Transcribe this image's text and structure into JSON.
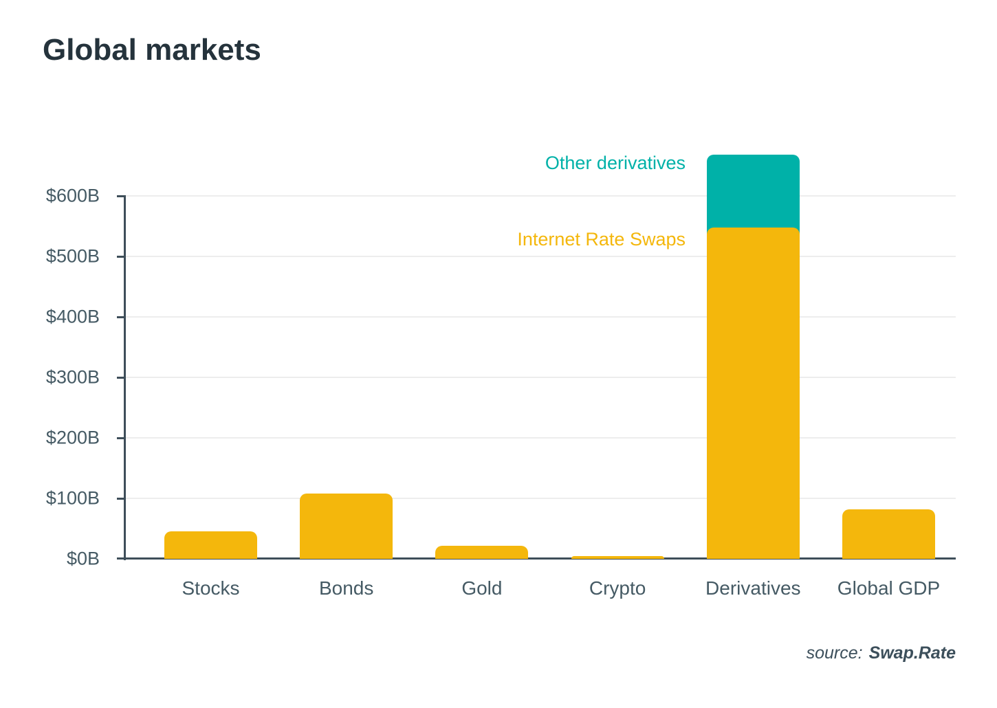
{
  "title": "Global markets",
  "source": {
    "prefix": "source:",
    "name": "Swap.Rate"
  },
  "colors": {
    "title_text": "#25333C",
    "axis_line": "#3E4E59",
    "axis_label": "#455A64",
    "gridline": "#EDEDED",
    "swap_yellow": "#F4B70C",
    "derivatives_teal": "#00B1A8",
    "background": "#FFFFFF"
  },
  "chart_data": {
    "type": "bar",
    "stacked": true,
    "title": "Global markets",
    "xlabel": "",
    "ylabel": "",
    "categories": [
      "Stocks",
      "Bonds",
      "Gold",
      "Crypto",
      "Derivatives",
      "Global GDP"
    ],
    "series": [
      {
        "name": "Internet Rate Swaps",
        "color": "#F4B70C",
        "values": [
          45,
          108,
          22,
          5,
          548,
          82
        ]
      },
      {
        "name": "Other derivatives",
        "color": "#00B1A8",
        "values": [
          0,
          0,
          0,
          0,
          120,
          0
        ]
      }
    ],
    "ylim": [
      0,
      600
    ],
    "yticks": [
      {
        "value": 0,
        "label": "$0B"
      },
      {
        "value": 100,
        "label": "$100B"
      },
      {
        "value": 200,
        "label": "$200B"
      },
      {
        "value": 300,
        "label": "$300B"
      },
      {
        "value": 400,
        "label": "$400B"
      },
      {
        "value": 500,
        "label": "$500B"
      },
      {
        "value": 600,
        "label": "$600B"
      }
    ],
    "grid": "horizontal",
    "legend_position": "annotations-left-of-derivatives-bar",
    "annotations": [
      {
        "text": "Other derivatives",
        "color": "#00B1A8"
      },
      {
        "text": "Internet Rate Swaps",
        "color": "#F4B70C"
      }
    ]
  }
}
